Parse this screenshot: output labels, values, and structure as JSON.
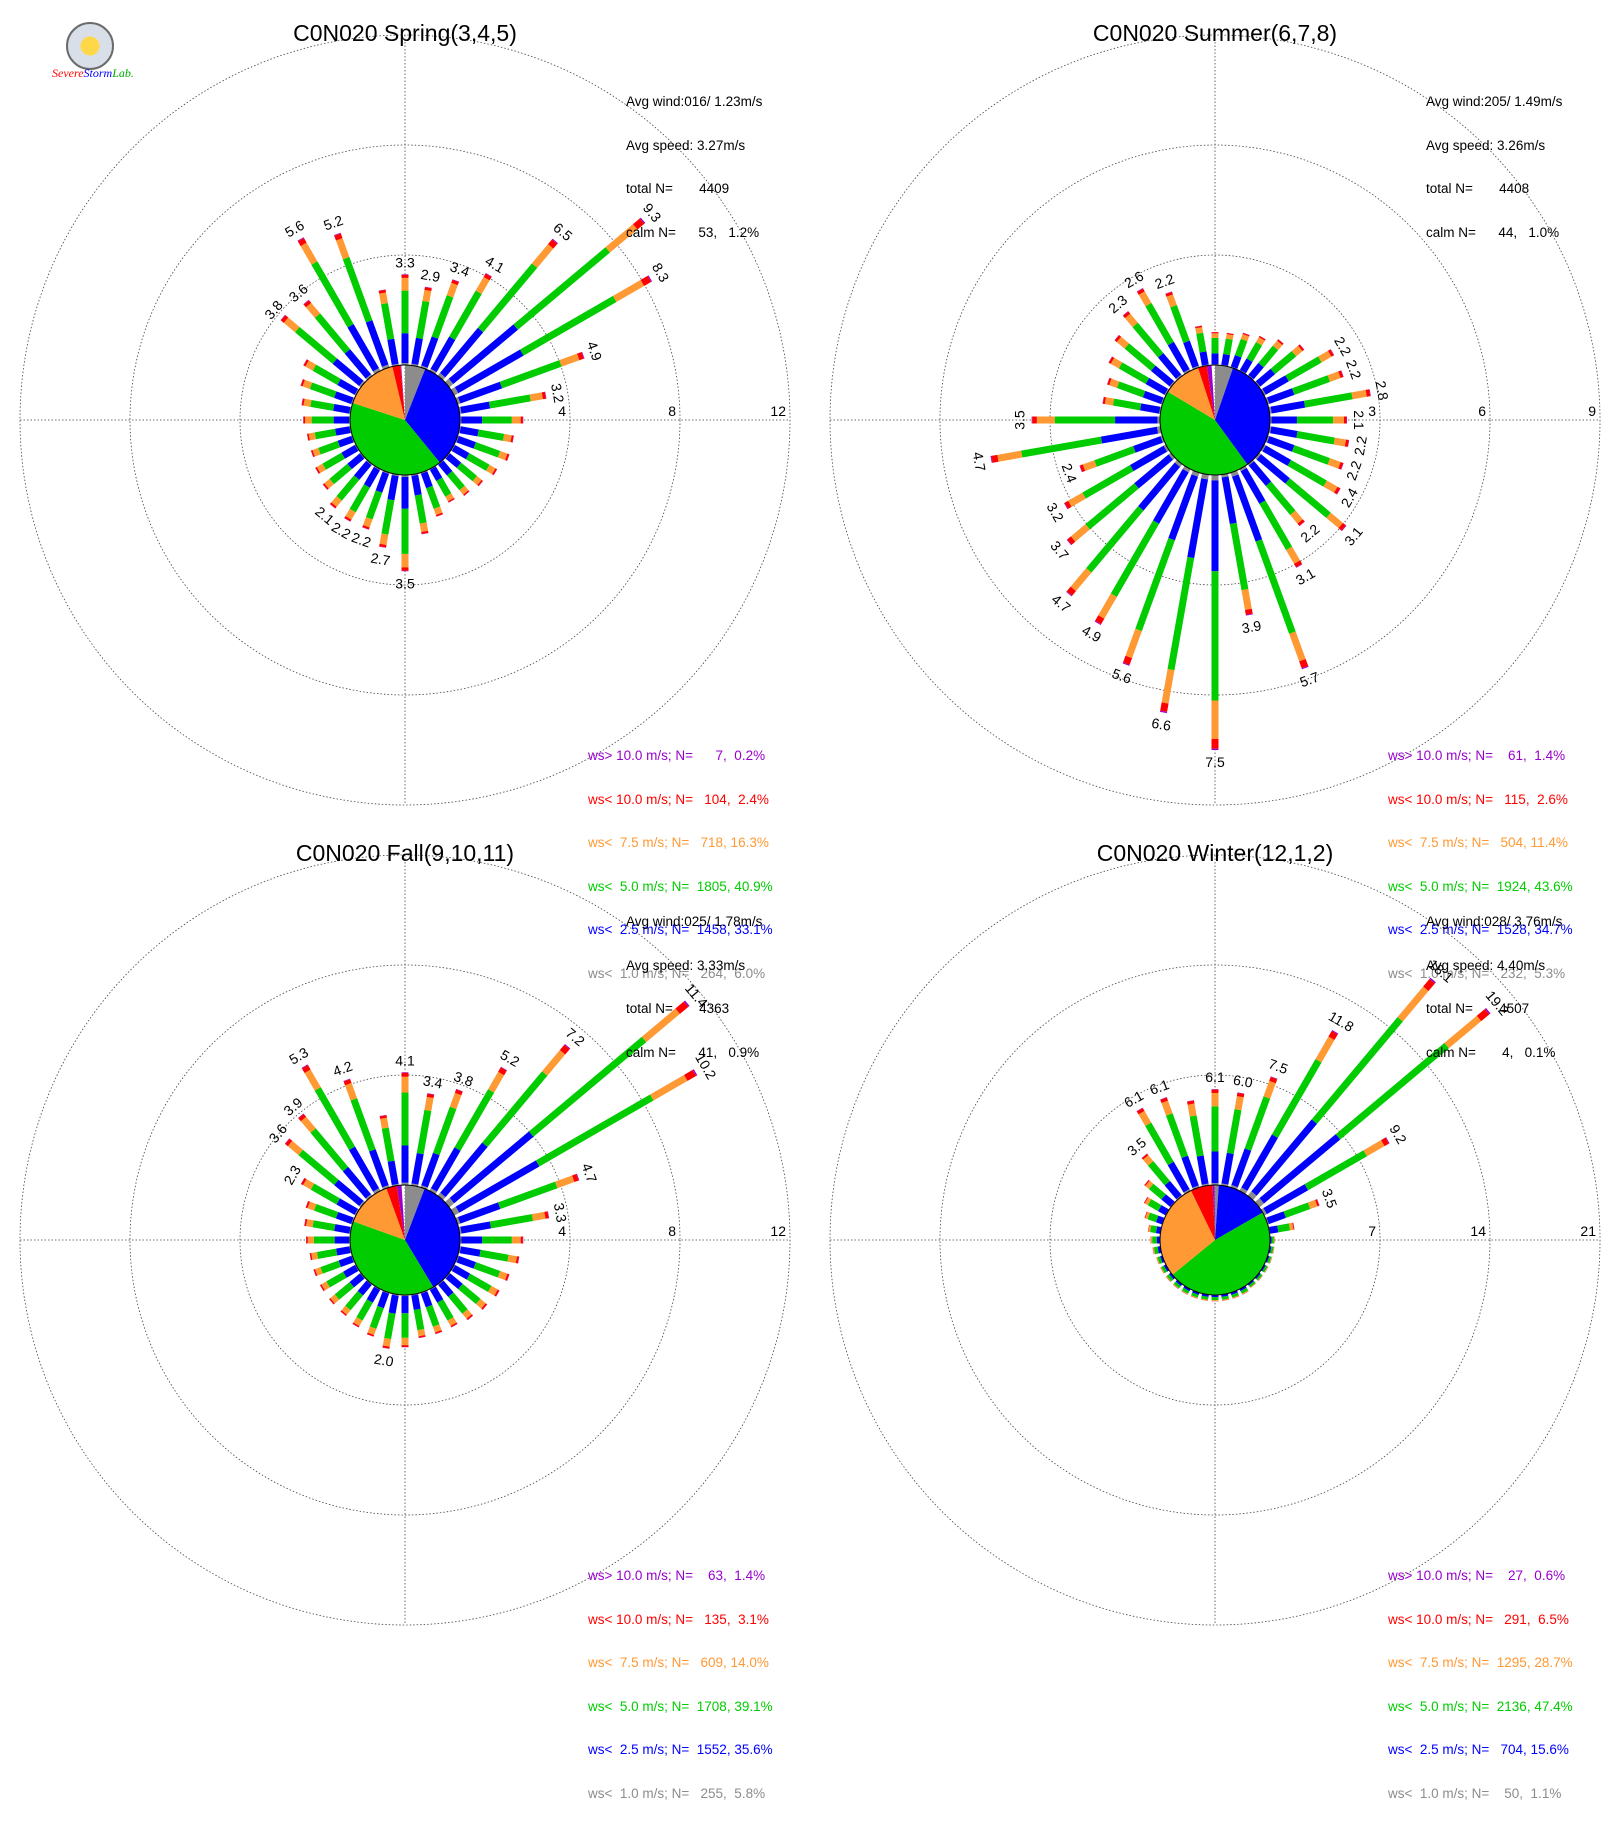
{
  "logo": {
    "text_a": "Severe",
    "text_b": "Storm",
    "text_c": "Lab."
  },
  "speed_colors": [
    "#8c8c8c",
    "#0000ff",
    "#00cc00",
    "#ff9933",
    "#ff0000",
    "#9900cc"
  ],
  "chart_data": [
    {
      "type": "windrose",
      "title": "C0N020 Spring(3,4,5)",
      "rings": [
        4,
        8,
        12
      ],
      "grid": true,
      "stats": {
        "avg_wind": "Avg wind:016/ 1.23m/s",
        "avg_speed": "Avg speed: 3.27m/s",
        "total": "total N=       4409",
        "calm": "calm N=      53,   1.2%"
      },
      "legend": [
        {
          "label": "ws> 10.0 m/s; N=      7,  0.2%",
          "color": "#9900cc"
        },
        {
          "label": "ws< 10.0 m/s; N=   104,  2.4%",
          "color": "#ff0000"
        },
        {
          "label": "ws<  7.5 m/s; N=   718, 16.3%",
          "color": "#ff9933"
        },
        {
          "label": "ws<  5.0 m/s; N=  1805, 40.9%",
          "color": "#00cc00"
        },
        {
          "label": "ws<  2.5 m/s; N=  1458, 33.1%",
          "color": "#0000ff"
        },
        {
          "label": "ws<  1.0 m/s; N=   264,  6.0%",
          "color": "#8c8c8c"
        }
      ],
      "pie_fractions": [
        0.06,
        0.331,
        0.409,
        0.163,
        0.024,
        0.002
      ],
      "bins": [
        {
          "dir": 0,
          "total": 3.3,
          "label": "3.3"
        },
        {
          "dir": 10,
          "total": 2.9,
          "label": "2.9"
        },
        {
          "dir": 20,
          "total": 3.4,
          "label": "3.4"
        },
        {
          "dir": 30,
          "total": 4.1,
          "label": "4.1"
        },
        {
          "dir": 40,
          "total": 6.5,
          "label": "6.5"
        },
        {
          "dir": 50,
          "total": 9.3,
          "label": "9.3"
        },
        {
          "dir": 60,
          "total": 8.3,
          "label": "8.3"
        },
        {
          "dir": 70,
          "total": 4.9,
          "label": "4.9"
        },
        {
          "dir": 80,
          "total": 3.2,
          "label": "3.2"
        },
        {
          "dir": 90,
          "total": 2.3
        },
        {
          "dir": 100,
          "total": 2.0
        },
        {
          "dir": 110,
          "total": 2.0
        },
        {
          "dir": 120,
          "total": 1.8
        },
        {
          "dir": 130,
          "total": 1.6
        },
        {
          "dir": 140,
          "total": 1.5
        },
        {
          "dir": 150,
          "total": 1.4
        },
        {
          "dir": 160,
          "total": 1.7
        },
        {
          "dir": 170,
          "total": 2.2
        },
        {
          "dir": 180,
          "total": 3.5,
          "label": "3.5"
        },
        {
          "dir": 190,
          "total": 2.7,
          "label": "2.7"
        },
        {
          "dir": 200,
          "total": 2.2,
          "label": "2.2"
        },
        {
          "dir": 210,
          "total": 2.2,
          "label": "2.2"
        },
        {
          "dir": 220,
          "total": 2.1,
          "label": "2.1"
        },
        {
          "dir": 230,
          "total": 1.8
        },
        {
          "dir": 240,
          "total": 1.7
        },
        {
          "dir": 250,
          "total": 1.6
        },
        {
          "dir": 260,
          "total": 1.6
        },
        {
          "dir": 270,
          "total": 1.7
        },
        {
          "dir": 280,
          "total": 1.8
        },
        {
          "dir": 290,
          "total": 2.0
        },
        {
          "dir": 300,
          "total": 2.2
        },
        {
          "dir": 310,
          "total": 3.8,
          "label": "3.8"
        },
        {
          "dir": 320,
          "total": 3.6,
          "label": "3.6"
        },
        {
          "dir": 330,
          "total": 5.6,
          "label": "5.6"
        },
        {
          "dir": 340,
          "total": 5.2,
          "label": "5.2"
        },
        {
          "dir": 350,
          "total": 2.8
        }
      ]
    },
    {
      "type": "windrose",
      "title": "C0N020 Summer(6,7,8)",
      "rings": [
        3,
        6,
        9
      ],
      "grid": true,
      "stats": {
        "avg_wind": "Avg wind:205/ 1.49m/s",
        "avg_speed": "Avg speed: 3.26m/s",
        "total": "total N=       4408",
        "calm": "calm N=      44,   1.0%"
      },
      "legend": [
        {
          "label": "ws> 10.0 m/s; N=    61,  1.4%",
          "color": "#9900cc"
        },
        {
          "label": "ws< 10.0 m/s; N=   115,  2.6%",
          "color": "#ff0000"
        },
        {
          "label": "ws<  7.5 m/s; N=   504, 11.4%",
          "color": "#ff9933"
        },
        {
          "label": "ws<  5.0 m/s; N=  1924, 43.6%",
          "color": "#00cc00"
        },
        {
          "label": "ws<  2.5 m/s; N=  1528, 34.7%",
          "color": "#0000ff"
        },
        {
          "label": "ws<  1.0 m/s; N=   232,  5.3%",
          "color": "#8c8c8c"
        }
      ],
      "pie_fractions": [
        0.053,
        0.347,
        0.436,
        0.114,
        0.026,
        0.014
      ],
      "bins": [
        {
          "dir": 0,
          "total": 0.9
        },
        {
          "dir": 10,
          "total": 0.9
        },
        {
          "dir": 20,
          "total": 1.0
        },
        {
          "dir": 30,
          "total": 1.1
        },
        {
          "dir": 40,
          "total": 1.3
        },
        {
          "dir": 50,
          "total": 1.6
        },
        {
          "dir": 60,
          "total": 2.2,
          "label": "2.2"
        },
        {
          "dir": 70,
          "total": 2.2,
          "label": "2.2"
        },
        {
          "dir": 80,
          "total": 2.8,
          "label": "2.8"
        },
        {
          "dir": 90,
          "total": 2.1,
          "label": "2.1"
        },
        {
          "dir": 100,
          "total": 2.2,
          "label": "2.2"
        },
        {
          "dir": 110,
          "total": 2.2,
          "label": "2.2"
        },
        {
          "dir": 120,
          "total": 2.4,
          "label": "2.4"
        },
        {
          "dir": 130,
          "total": 3.1,
          "label": "3.1"
        },
        {
          "dir": 140,
          "total": 2.2,
          "label": "2.2"
        },
        {
          "dir": 150,
          "total": 3.1,
          "label": "3.1"
        },
        {
          "dir": 160,
          "total": 5.7,
          "label": "5.7"
        },
        {
          "dir": 170,
          "total": 3.9,
          "label": "3.9"
        },
        {
          "dir": 180,
          "total": 7.5,
          "label": "7.5"
        },
        {
          "dir": 190,
          "total": 6.6,
          "label": "6.6"
        },
        {
          "dir": 200,
          "total": 5.6,
          "label": "5.6"
        },
        {
          "dir": 210,
          "total": 4.9,
          "label": "4.9"
        },
        {
          "dir": 220,
          "total": 4.7,
          "label": "4.7"
        },
        {
          "dir": 230,
          "total": 3.7,
          "label": "3.7"
        },
        {
          "dir": 240,
          "total": 3.2,
          "label": "3.2"
        },
        {
          "dir": 250,
          "total": 2.4,
          "label": "2.4"
        },
        {
          "dir": 260,
          "total": 4.7,
          "label": "4.7"
        },
        {
          "dir": 270,
          "total": 3.5,
          "label": "3.5"
        },
        {
          "dir": 280,
          "total": 1.6
        },
        {
          "dir": 290,
          "total": 1.6
        },
        {
          "dir": 300,
          "total": 1.8
        },
        {
          "dir": 310,
          "total": 2.0
        },
        {
          "dir": 320,
          "total": 2.3,
          "label": "2.3"
        },
        {
          "dir": 330,
          "total": 2.6,
          "label": "2.6"
        },
        {
          "dir": 340,
          "total": 2.2,
          "label": "2.2"
        },
        {
          "dir": 350,
          "total": 1.1
        }
      ]
    },
    {
      "type": "windrose",
      "title": "C0N020 Fall(9,10,11)",
      "rings": [
        4,
        8,
        12
      ],
      "grid": true,
      "stats": {
        "avg_wind": "Avg wind:025/ 1.78m/s",
        "avg_speed": "Avg speed: 3.33m/s",
        "total": "total N=       4363",
        "calm": "calm N=      41,   0.9%"
      },
      "legend": [
        {
          "label": "ws> 10.0 m/s; N=    63,  1.4%",
          "color": "#9900cc"
        },
        {
          "label": "ws< 10.0 m/s; N=   135,  3.1%",
          "color": "#ff0000"
        },
        {
          "label": "ws<  7.5 m/s; N=   609, 14.0%",
          "color": "#ff9933"
        },
        {
          "label": "ws<  5.0 m/s; N=  1708, 39.1%",
          "color": "#00cc00"
        },
        {
          "label": "ws<  2.5 m/s; N=  1552, 35.6%",
          "color": "#0000ff"
        },
        {
          "label": "ws<  1.0 m/s; N=   255,  5.8%",
          "color": "#8c8c8c"
        }
      ],
      "pie_fractions": [
        0.058,
        0.356,
        0.391,
        0.14,
        0.031,
        0.014
      ],
      "bins": [
        {
          "dir": 0,
          "total": 4.1,
          "label": "4.1"
        },
        {
          "dir": 10,
          "total": 3.4,
          "label": "3.4"
        },
        {
          "dir": 20,
          "total": 3.8,
          "label": "3.8"
        },
        {
          "dir": 30,
          "total": 5.2,
          "label": "5.2"
        },
        {
          "dir": 40,
          "total": 7.2,
          "label": "7.2"
        },
        {
          "dir": 50,
          "total": 11.4,
          "label": "11.4"
        },
        {
          "dir": 60,
          "total": 10.2,
          "label": "10.2"
        },
        {
          "dir": 70,
          "total": 4.7,
          "label": "4.7"
        },
        {
          "dir": 80,
          "total": 3.3,
          "label": "3.3"
        },
        {
          "dir": 90,
          "total": 2.3
        },
        {
          "dir": 100,
          "total": 2.2
        },
        {
          "dir": 110,
          "total": 2.0
        },
        {
          "dir": 120,
          "total": 1.9
        },
        {
          "dir": 130,
          "total": 1.8
        },
        {
          "dir": 140,
          "total": 1.7
        },
        {
          "dir": 150,
          "total": 1.6
        },
        {
          "dir": 160,
          "total": 1.6
        },
        {
          "dir": 170,
          "total": 1.6
        },
        {
          "dir": 180,
          "total": 1.9
        },
        {
          "dir": 190,
          "total": 2.0,
          "label": "2.0"
        },
        {
          "dir": 200,
          "total": 1.7
        },
        {
          "dir": 210,
          "total": 1.6
        },
        {
          "dir": 220,
          "total": 1.5
        },
        {
          "dir": 230,
          "total": 1.5
        },
        {
          "dir": 240,
          "total": 1.5
        },
        {
          "dir": 250,
          "total": 1.5
        },
        {
          "dir": 260,
          "total": 1.5
        },
        {
          "dir": 270,
          "total": 1.6
        },
        {
          "dir": 280,
          "total": 1.7
        },
        {
          "dir": 290,
          "total": 1.8
        },
        {
          "dir": 300,
          "total": 2.3,
          "label": "2.3"
        },
        {
          "dir": 310,
          "total": 3.6,
          "label": "3.6"
        },
        {
          "dir": 320,
          "total": 3.9,
          "label": "3.9"
        },
        {
          "dir": 330,
          "total": 5.3,
          "label": "5.3"
        },
        {
          "dir": 340,
          "total": 4.2,
          "label": "4.2"
        },
        {
          "dir": 350,
          "total": 2.6
        }
      ]
    },
    {
      "type": "windrose",
      "title": "C0N020 Winter(12,1,2)",
      "rings": [
        7,
        14,
        21
      ],
      "grid": true,
      "stats": {
        "avg_wind": "Avg wind:028/ 3.76m/s",
        "avg_speed": "Avg speed: 4.40m/s",
        "total": "total N=       4507",
        "calm": "calm N=       4,   0.1%"
      },
      "legend": [
        {
          "label": "ws> 10.0 m/s; N=    27,  0.6%",
          "color": "#9900cc"
        },
        {
          "label": "ws< 10.0 m/s; N=   291,  6.5%",
          "color": "#ff0000"
        },
        {
          "label": "ws<  7.5 m/s; N=  1295, 28.7%",
          "color": "#ff9933"
        },
        {
          "label": "ws<  5.0 m/s; N=  2136, 47.4%",
          "color": "#00cc00"
        },
        {
          "label": "ws<  2.5 m/s; N=   704, 15.6%",
          "color": "#0000ff"
        },
        {
          "label": "ws<  1.0 m/s; N=    50,  1.1%",
          "color": "#8c8c8c"
        }
      ],
      "pie_fractions": [
        0.011,
        0.156,
        0.474,
        0.287,
        0.065,
        0.006
      ],
      "bins": [
        {
          "dir": 0,
          "total": 6.1,
          "label": "6.1"
        },
        {
          "dir": 10,
          "total": 6.0,
          "label": "6.0"
        },
        {
          "dir": 20,
          "total": 7.5,
          "label": "7.5"
        },
        {
          "dir": 30,
          "total": 11.8,
          "label": "11.8"
        },
        {
          "dir": 40,
          "total": 18.1,
          "label": "18.1"
        },
        {
          "dir": 50,
          "total": 19.2,
          "label": "19.2"
        },
        {
          "dir": 60,
          "total": 9.2,
          "label": "9.2"
        },
        {
          "dir": 70,
          "total": 3.5,
          "label": "3.5"
        },
        {
          "dir": 80,
          "total": 1.6
        },
        {
          "dir": 90,
          "total": 0.3
        },
        {
          "dir": 100,
          "total": 0.3
        },
        {
          "dir": 110,
          "total": 0.3
        },
        {
          "dir": 120,
          "total": 0.3
        },
        {
          "dir": 130,
          "total": 0.3
        },
        {
          "dir": 140,
          "total": 0.3
        },
        {
          "dir": 150,
          "total": 0.4
        },
        {
          "dir": 160,
          "total": 0.4
        },
        {
          "dir": 170,
          "total": 0.4
        },
        {
          "dir": 180,
          "total": 0.4
        },
        {
          "dir": 190,
          "total": 0.4
        },
        {
          "dir": 200,
          "total": 0.4
        },
        {
          "dir": 210,
          "total": 0.4
        },
        {
          "dir": 220,
          "total": 0.4
        },
        {
          "dir": 230,
          "total": 0.4
        },
        {
          "dir": 240,
          "total": 0.4
        },
        {
          "dir": 250,
          "total": 0.4
        },
        {
          "dir": 260,
          "total": 0.5
        },
        {
          "dir": 270,
          "total": 0.6
        },
        {
          "dir": 280,
          "total": 0.8
        },
        {
          "dir": 290,
          "total": 1.2
        },
        {
          "dir": 300,
          "total": 1.6
        },
        {
          "dir": 310,
          "total": 2.2
        },
        {
          "dir": 320,
          "total": 3.5,
          "label": "3.5"
        },
        {
          "dir": 330,
          "total": 6.1,
          "label": "6.1"
        },
        {
          "dir": 340,
          "total": 6.1,
          "label": "6.1"
        },
        {
          "dir": 350,
          "total": 5.5
        }
      ]
    }
  ]
}
